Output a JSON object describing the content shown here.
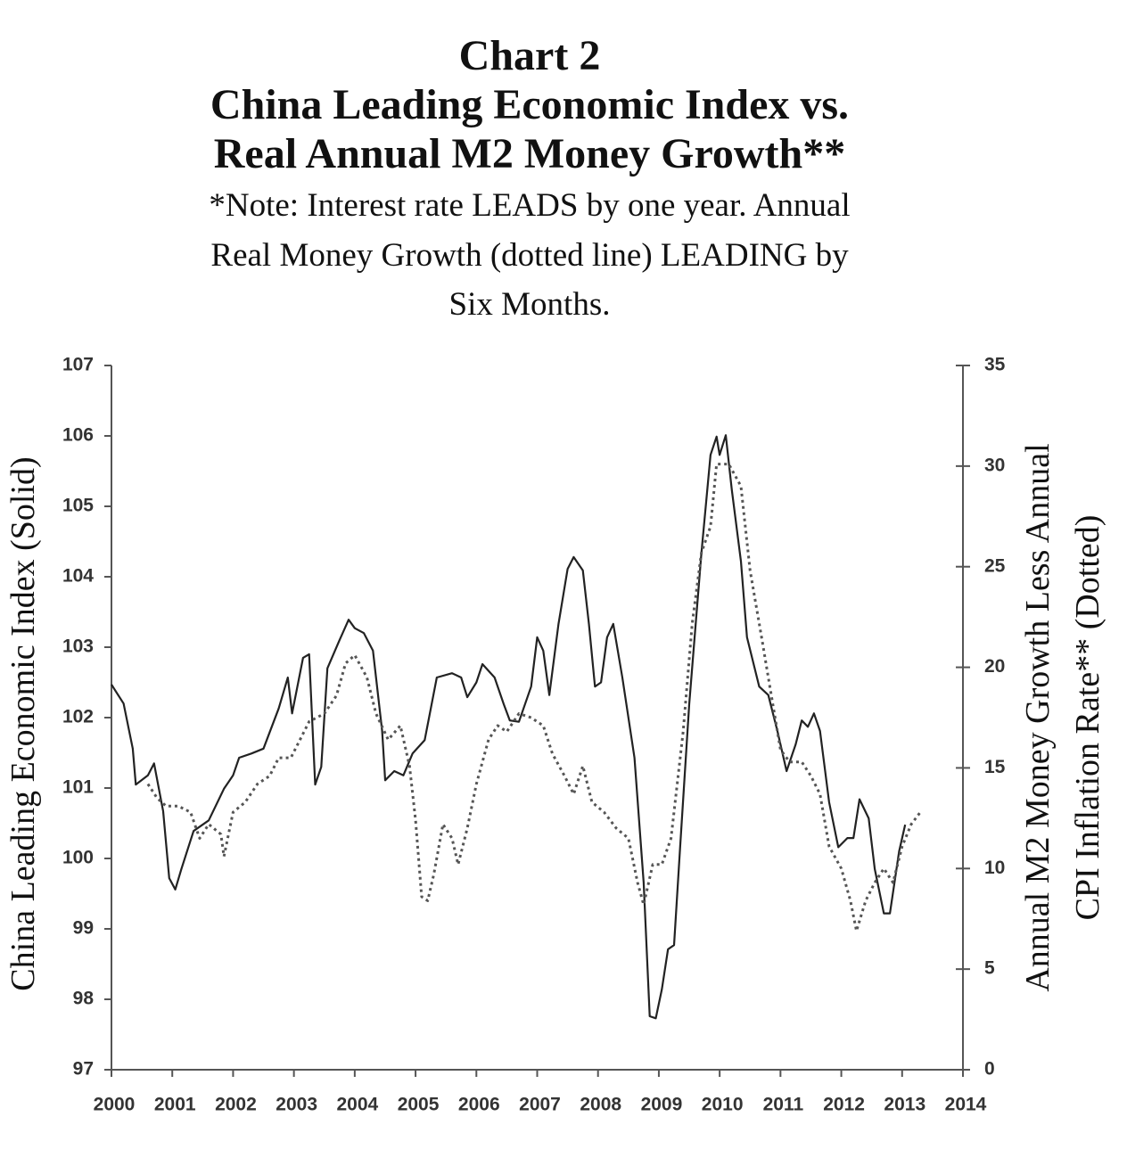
{
  "chart_data": {
    "type": "line",
    "title": [
      "Chart 2",
      "China Leading Economic Index vs.",
      "Real Annual M2 Money Growth**"
    ],
    "subtitle": [
      "*Note: Interest rate LEADS by one year. Annual",
      "Real Money Growth (dotted line) LEADING by",
      "Six Months."
    ],
    "ylabel": "China Leading Economic Index (Solid)",
    "y2label": [
      "Annual M2 Money Growth Less Annual",
      "CPI Inflation Rate** (Dotted)"
    ],
    "xlim": [
      2000,
      2014
    ],
    "xticks": [
      2000,
      2001,
      2002,
      2003,
      2004,
      2005,
      2006,
      2007,
      2008,
      2009,
      2010,
      2011,
      2012,
      2013,
      2014
    ],
    "ylim": [
      97,
      107
    ],
    "yticks": [
      97,
      98,
      99,
      100,
      101,
      102,
      103,
      104,
      105,
      106,
      107
    ],
    "y2lim": [
      0,
      35
    ],
    "y2ticks": [
      0,
      5,
      10,
      15,
      20,
      25,
      30,
      35
    ],
    "grid": false,
    "series": [
      {
        "name": "China Leading Economic Index",
        "color": "#222222",
        "line_style": "solid",
        "axis": "y",
        "x": [
          2000.0,
          2000.2,
          2000.35,
          2000.4,
          2000.6,
          2000.7,
          2000.85,
          2000.95,
          2001.05,
          2001.15,
          2001.35,
          2001.6,
          2001.85,
          2002.0,
          2002.1,
          2002.3,
          2002.5,
          2002.75,
          2002.9,
          2002.97,
          2003.15,
          2003.25,
          2003.35,
          2003.45,
          2003.55,
          2003.75,
          2003.9,
          2004.0,
          2004.15,
          2004.3,
          2004.45,
          2004.5,
          2004.65,
          2004.8,
          2004.95,
          2005.15,
          2005.35,
          2005.6,
          2005.75,
          2005.85,
          2006.0,
          2006.1,
          2006.3,
          2006.45,
          2006.55,
          2006.7,
          2006.9,
          2007.0,
          2007.1,
          2007.2,
          2007.35,
          2007.5,
          2007.6,
          2007.75,
          2007.85,
          2007.95,
          2008.05,
          2008.15,
          2008.25,
          2008.4,
          2008.6,
          2008.75,
          2008.85,
          2008.95,
          2009.05,
          2009.15,
          2009.25,
          2009.35,
          2009.5,
          2009.7,
          2009.85,
          2009.95,
          2010.0,
          2010.1,
          2010.2,
          2010.35,
          2010.45,
          2010.65,
          2010.8,
          2010.95,
          2011.1,
          2011.25,
          2011.35,
          2011.45,
          2011.55,
          2011.65,
          2011.8,
          2011.95,
          2012.1,
          2012.2,
          2012.3,
          2012.45,
          2012.55,
          2012.7,
          2012.8,
          2012.95,
          2013.05
        ],
        "values": [
          102.47,
          102.2,
          101.56,
          101.05,
          101.18,
          101.35,
          100.67,
          99.72,
          99.56,
          99.85,
          100.39,
          100.54,
          100.99,
          101.18,
          101.43,
          101.49,
          101.56,
          102.13,
          102.57,
          102.06,
          102.85,
          102.9,
          101.05,
          101.3,
          102.7,
          103.1,
          103.39,
          103.27,
          103.2,
          102.95,
          101.81,
          101.11,
          101.24,
          101.18,
          101.49,
          101.68,
          102.57,
          102.63,
          102.57,
          102.29,
          102.5,
          102.76,
          102.57,
          102.19,
          101.96,
          101.94,
          102.44,
          103.14,
          102.95,
          102.32,
          103.33,
          104.11,
          104.28,
          104.09,
          103.33,
          102.44,
          102.5,
          103.14,
          103.33,
          102.57,
          101.43,
          99.66,
          97.76,
          97.73,
          98.14,
          98.71,
          98.77,
          100.16,
          102.19,
          104.34,
          105.73,
          105.99,
          105.73,
          106.01,
          105.23,
          104.22,
          103.14,
          102.44,
          102.32,
          101.81,
          101.24,
          101.62,
          101.96,
          101.87,
          102.06,
          101.81,
          100.8,
          100.16,
          100.29,
          100.29,
          100.84,
          100.57,
          99.85,
          99.22,
          99.22,
          100.1,
          100.48
        ]
      },
      {
        "name": "Real Annual M2 Money Growth",
        "color": "#555555",
        "line_style": "dotted",
        "axis": "y2",
        "x": [
          2000.6,
          2000.75,
          2000.9,
          2001.1,
          2001.3,
          2001.45,
          2001.6,
          2001.8,
          2001.85,
          2002.0,
          2002.2,
          2002.4,
          2002.6,
          2002.75,
          2002.95,
          2003.1,
          2003.25,
          2003.5,
          2003.7,
          2003.85,
          2004.0,
          2004.2,
          2004.35,
          2004.55,
          2004.75,
          2004.9,
          2005.0,
          2005.1,
          2005.2,
          2005.3,
          2005.45,
          2005.6,
          2005.7,
          2005.85,
          2006.0,
          2006.2,
          2006.35,
          2006.5,
          2006.7,
          2006.9,
          2007.1,
          2007.25,
          2007.45,
          2007.6,
          2007.75,
          2007.9,
          2008.1,
          2008.3,
          2008.5,
          2008.65,
          2008.75,
          2008.9,
          2009.05,
          2009.2,
          2009.4,
          2009.55,
          2009.7,
          2009.85,
          2009.95,
          2010.15,
          2010.35,
          2010.5,
          2010.7,
          2010.85,
          2011.0,
          2011.15,
          2011.35,
          2011.5,
          2011.65,
          2011.8,
          2012.0,
          2012.15,
          2012.25,
          2012.4,
          2012.55,
          2012.7,
          2012.85,
          2013.0,
          2013.15,
          2013.3
        ],
        "values": [
          14.2,
          13.5,
          13.1,
          13.1,
          12.8,
          11.5,
          12.2,
          11.7,
          10.6,
          12.8,
          13.3,
          14.2,
          14.6,
          15.5,
          15.5,
          16.4,
          17.3,
          17.7,
          18.6,
          20.2,
          20.6,
          19.5,
          17.7,
          16.4,
          17.1,
          15.1,
          12.4,
          8.6,
          8.4,
          9.7,
          12.2,
          11.5,
          10.2,
          12.0,
          14.2,
          16.4,
          17.1,
          16.8,
          17.7,
          17.5,
          17.1,
          15.7,
          14.6,
          13.7,
          15.1,
          13.3,
          12.8,
          12.0,
          11.5,
          9.3,
          8.2,
          10.2,
          10.2,
          11.5,
          16.8,
          22.2,
          25.7,
          27.0,
          30.1,
          30.1,
          29.0,
          24.8,
          21.3,
          18.6,
          15.9,
          15.3,
          15.3,
          14.6,
          13.7,
          11.1,
          10.0,
          8.4,
          6.9,
          8.4,
          9.3,
          10.0,
          9.3,
          11.1,
          12.2,
          12.8
        ]
      }
    ]
  }
}
